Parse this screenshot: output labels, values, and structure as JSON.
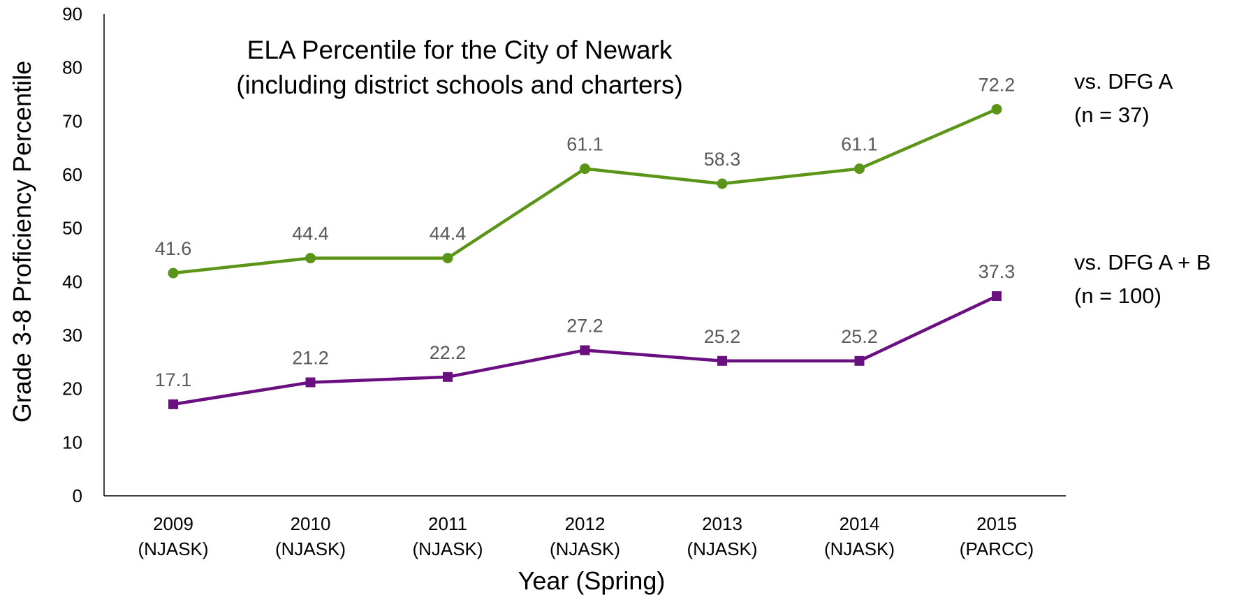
{
  "chart_data": {
    "type": "line",
    "title": "ELA Percentile for the City of Newark",
    "subtitle": "(including district schools and charters)",
    "xlabel": "Year (Spring)",
    "ylabel": "Grade 3-8 Proficiency Percentile",
    "ylim": [
      0,
      90
    ],
    "yticks": [
      "0",
      "10",
      "20",
      "30",
      "40",
      "50",
      "60",
      "70",
      "80",
      "90"
    ],
    "grid": false,
    "categories": [
      {
        "year": "2009",
        "test": "(NJASK)"
      },
      {
        "year": "2010",
        "test": "(NJASK)"
      },
      {
        "year": "2011",
        "test": "(NJASK)"
      },
      {
        "year": "2012",
        "test": "(NJASK)"
      },
      {
        "year": "2013",
        "test": "(NJASK)"
      },
      {
        "year": "2014",
        "test": "(NJASK)"
      },
      {
        "year": "2015",
        "test": "(PARCC)"
      }
    ],
    "series": [
      {
        "name": "vs. DFG A",
        "note": "(n = 37)",
        "color": "#5b9517",
        "marker": "circle",
        "values": [
          41.6,
          44.4,
          44.4,
          61.1,
          58.3,
          61.1,
          72.2
        ],
        "labels": [
          "41.6",
          "44.4",
          "44.4",
          "61.1",
          "58.3",
          "61.1",
          "72.2"
        ]
      },
      {
        "name": "vs. DFG A + B",
        "note": "(n = 100)",
        "color": "#6a0f80",
        "marker": "square",
        "values": [
          17.1,
          21.2,
          22.2,
          27.2,
          25.2,
          25.2,
          37.3
        ],
        "labels": [
          "17.1",
          "21.2",
          "22.2",
          "27.2",
          "25.2",
          "25.2",
          "37.3"
        ]
      }
    ]
  }
}
